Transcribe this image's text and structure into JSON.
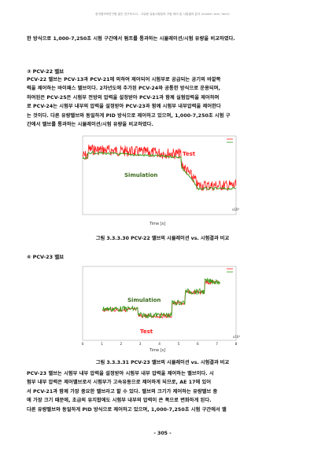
{
  "header": "한국원자력연구원 발간 연구보고서 - 고유량 유동시험장치 구동 제어 및 시험결과 분석 (header text, faint)",
  "intro": "한 방식으로 1,000-7,250초 시험 구간에서 펌프를 통과하는 시뮬레이션/시험 유량을 비교하였다.",
  "section3": {
    "title": "③ PCV-22 밸브",
    "lines": [
      "PCV-22 밸브는 PCV-13과 PCV-21에 의하여 제어되어 시험부로 공급되는 공기의 바깥쪽",
      "력을 제어하는 바이패스 밸브이다. 2차년도에 추가된 PCV-24와 공통한 방식으로 운용되며,",
      "하여된은 PCV-25은 시험부 전방의 압력을 설정받아 PCV-21과 함께 실험압력을 제어하며",
      "로 PCV-24는 시험부 내부의 압력을 설정받아 PCV-23과 함께 시험부 내부압력을 제어한다",
      "는 것이다. 다른 유량밸브와 동일하게 PID 방식으로 제어하고 있으며, 1,000-7,250초 시험 구",
      "간에서 밸브를 통과하는 시뮬레이션/시험 유량을 비교하였다."
    ]
  },
  "figure1": {
    "caption": "그림 3.3.3.30 PCV-22 밸브의 시뮬레이션 vs. 시험결과 비교",
    "xlabel": "Time [s]",
    "exponent": "x10³",
    "legend": [
      "Test",
      "Simulation"
    ],
    "label_test": "Test",
    "label_sim": "Simulation"
  },
  "section4": {
    "title": "④ PCV-23 밸브"
  },
  "figure2": {
    "caption": "그림 3.3.3.31 PCV-23 밸브의 시뮬레이션 vs. 시험결과 비교",
    "xlabel": "Time [s]",
    "exponent": "x10³",
    "legend": [
      "Test",
      "Simulation"
    ],
    "label_test": "Test",
    "label_sim": "Simulation",
    "xticks": [
      "0",
      "1",
      "2",
      "3",
      "4",
      "5",
      "6",
      "7",
      "8"
    ]
  },
  "closing": {
    "lines": [
      "PCV-23 밸브는 시험부 내부 압력을 설정받아 시험부 내부 압력을 제어하는 밸브이다. 시",
      "험부 내부 압력은 제어밸브로서 시험부가 고속유동으로 제어하게 되므로, AE 17에 있어",
      "서 PCV-21과 함께 가장 중요한 밸브라고 할 수 있다. 밸브의 크기가 제어하는 유량밸브 중",
      "에 가장 크기 때문에, 초급의 유지합에도 시험부 내부의 압력이 큰 폭으로 변화하게 된다.",
      "다른 유량밸브와 동일하게 PID 방식으로 제어하고 있으며, 1,000-7,250초 시험 구간에서 밸"
    ]
  },
  "page_number": "- 305 -",
  "colors": {
    "test": "#ff1a1a",
    "sim": "#3a9a1a"
  }
}
